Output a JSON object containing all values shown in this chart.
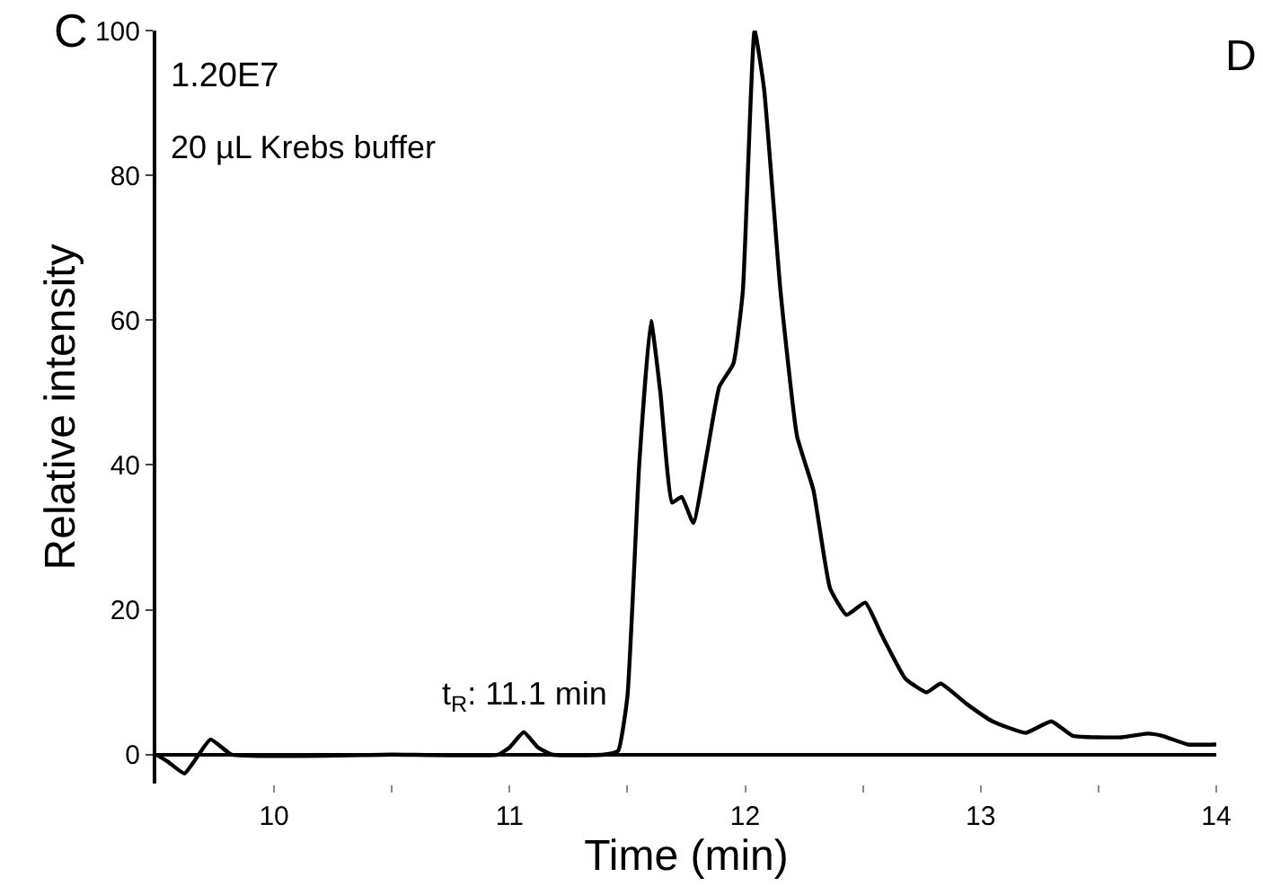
{
  "chart_data": {
    "type": "line",
    "xlabel": "Time (min)",
    "ylabel": "Relative intensity",
    "annotations": [
      "C",
      "1.20E7",
      "20 µL Krebs buffer",
      "D",
      {
        "text": "t$_{R}$: 11.1 min",
        "x": 11.06,
        "y": 3.1
      }
    ],
    "x": [
      9.5,
      9.55,
      9.62,
      9.73,
      9.82,
      10.5,
      10.95,
      11.0,
      11.06,
      11.12,
      11.18,
      11.4,
      11.46,
      11.5,
      11.55,
      11.6,
      11.64,
      11.69,
      11.73,
      11.78,
      11.84,
      11.89,
      11.95,
      11.99,
      12.04,
      12.08,
      12.15,
      12.22,
      12.29,
      12.36,
      12.43,
      12.51,
      12.58,
      12.68,
      12.77,
      12.83,
      12.94,
      13.05,
      13.19,
      13.3,
      13.39,
      13.6,
      13.71,
      13.77,
      13.88,
      14.0
    ],
    "values": [
      0,
      -1,
      -2.6,
      2.1,
      0,
      0,
      0,
      1,
      3.1,
      1,
      0,
      0,
      0.5,
      8,
      40,
      59.9,
      50,
      34.8,
      35.6,
      32,
      42,
      50.8,
      54,
      64,
      100,
      92,
      64,
      44,
      36.5,
      23,
      19.3,
      21,
      16.5,
      10.5,
      8.6,
      9.8,
      7,
      4.6,
      3,
      4.6,
      2.6,
      2.4,
      2.9,
      2.6,
      1.4,
      1.4
    ],
    "color": "#000000",
    "xlim": [
      9.5,
      14
    ],
    "ylim": [
      -4,
      100
    ],
    "xticks": [
      10,
      {
        "value": 10.5,
        "label": null
      },
      11,
      {
        "value": 11.5,
        "label": null
      },
      12,
      {
        "value": 12.5,
        "label": null
      },
      13,
      {
        "value": 13.5,
        "label": null
      },
      14
    ],
    "yticks": [
      0,
      20,
      40,
      60,
      80,
      100
    ],
    "grid": false,
    "marker": "none",
    "line_style": "solid"
  }
}
